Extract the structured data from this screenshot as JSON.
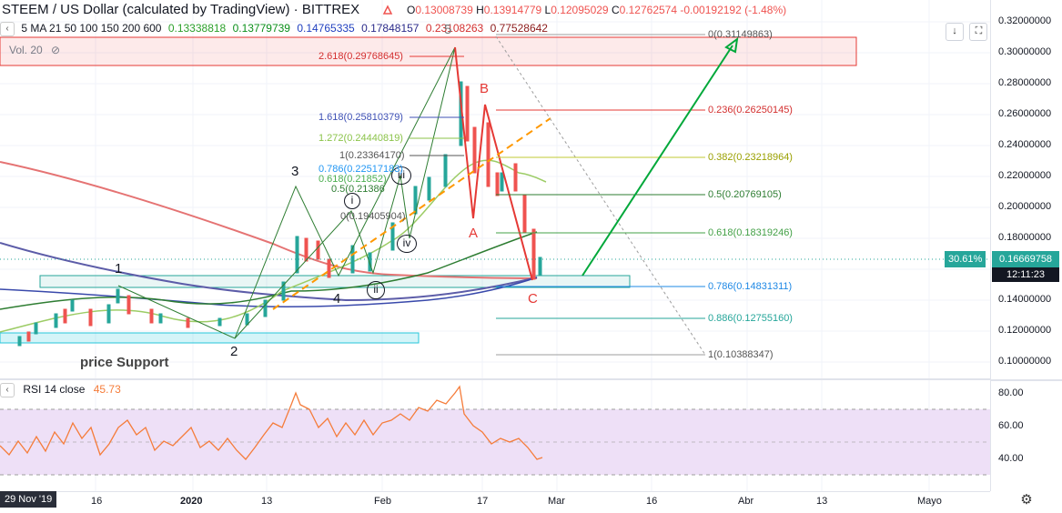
{
  "header": {
    "title": "STEEM / US Dollar (calculated by TradingView) · BITTREX",
    "ohlc": {
      "o_label": "O",
      "o": "0.13008739",
      "h_label": "H",
      "h": "0.13914779",
      "l_label": "L",
      "l": "0.12095029",
      "c_label": "C",
      "c": "0.12762574",
      "change": "-0.00192192 (-1.48%)"
    }
  },
  "ma_bar": {
    "label": "5 MA 21 50 100 150 200 600",
    "values": [
      "0.13338818",
      "0.13779739",
      "0.14765335",
      "0.17848157",
      "0.23108263",
      "0.77528642"
    ],
    "colors": [
      "#2ca02c",
      "#0b8f1c",
      "#1f3fbf",
      "#2a2a8a",
      "#d32f2f",
      "#8b1a1a"
    ]
  },
  "volume_label": "Vol. 20",
  "y_axis": [
    "0.32000000",
    "0.30000000",
    "0.28000000",
    "0.26000000",
    "0.24000000",
    "0.22000000",
    "0.20000000",
    "0.18000000",
    "0.14000000",
    "0.12000000",
    "0.10000000"
  ],
  "price_tag": {
    "pct": "30.61%",
    "price": "0.16669758",
    "timer": "12:11:23"
  },
  "rsi": {
    "label": "RSI 14 close",
    "value": "45.73",
    "axis": [
      "80.00",
      "60.00",
      "40.00"
    ]
  },
  "x_axis": [
    "16",
    "2020",
    "13",
    "Feb",
    "17",
    "Mar",
    "16",
    "Abr",
    "13",
    "Mayo"
  ],
  "date_tag": "29 Nov '19",
  "waves": {
    "w1": "1",
    "w2": "2",
    "w3": "3",
    "w4": "4",
    "w5": "5",
    "A": "A",
    "B": "B",
    "C": "C",
    "i": "i",
    "ii": "ii",
    "iii": "iii",
    "iv": "iv"
  },
  "price_support": "price Support",
  "fib_left": [
    {
      "text": "2.618(0.29768645)",
      "color": "#d32f2f"
    },
    {
      "text": "1.618(0.25810379)",
      "color": "#3f51b5"
    },
    {
      "text": "1.272(0.24440819)",
      "color": "#8bc34a"
    },
    {
      "text": "1(0.23364170)",
      "color": "#555555"
    },
    {
      "text": "0.786(0.22517183)",
      "color": "#2196f3"
    },
    {
      "text": "0.618(0.21852)",
      "color": "#4caf50"
    },
    {
      "text": "0.5(0.21386",
      "color": "#2e7d32"
    },
    {
      "text": "0(0.19405904)",
      "color": "#555555"
    }
  ],
  "fib_right": [
    {
      "text": "0(0.31149863)",
      "color": "#555555"
    },
    {
      "text": "0.236(0.26250145)",
      "color": "#d32f2f"
    },
    {
      "text": "0.382(0.23218964)",
      "color": "#9aa000"
    },
    {
      "text": "0.5(0.20769105)",
      "color": "#2e7d32"
    },
    {
      "text": "0.618(0.18319246)",
      "color": "#43a047"
    },
    {
      "text": "0.786(0.14831311)",
      "color": "#1e88e5"
    },
    {
      "text": "0.886(0.12755160)",
      "color": "#26a69a"
    },
    {
      "text": "1(0.10388347)",
      "color": "#555555"
    }
  ],
  "colors": {
    "up": "#26a69a",
    "down": "#ef5350",
    "rsi_line": "#f57c3a",
    "rsi_band": "#e9d7f5"
  }
}
